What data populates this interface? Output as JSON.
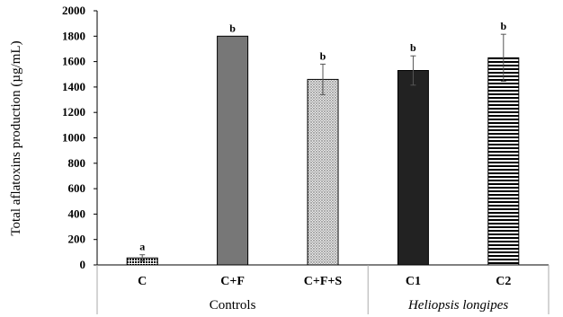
{
  "chart_data": {
    "type": "bar",
    "ylabel": "Total aflatoxins production (µg/mL)",
    "ylim": [
      0,
      2000
    ],
    "yticks": [
      0,
      200,
      400,
      600,
      800,
      1000,
      1200,
      1400,
      1600,
      1800,
      2000
    ],
    "grid": false,
    "categories": [
      "C",
      "C+F",
      "C+F+S",
      "C1",
      "C2"
    ],
    "values": [
      55,
      1800,
      1460,
      1530,
      1630
    ],
    "errors": [
      25,
      0,
      120,
      115,
      185
    ],
    "significance": [
      "a",
      "b",
      "b",
      "b",
      "b"
    ],
    "fill_patterns": [
      "dots-dense",
      "solid-gray",
      "dots-fine",
      "solid-black",
      "horizontal-lines"
    ],
    "groups": [
      {
        "label": "Controls",
        "categories": [
          "C",
          "C+F",
          "C+F+S"
        ],
        "italic": false
      },
      {
        "label": "Heliopsis longipes",
        "categories": [
          "C1",
          "C2"
        ],
        "italic": true
      }
    ],
    "colors": {
      "bar_gray": "#777777",
      "bar_black": "#222222",
      "stroke": "#000000"
    }
  }
}
